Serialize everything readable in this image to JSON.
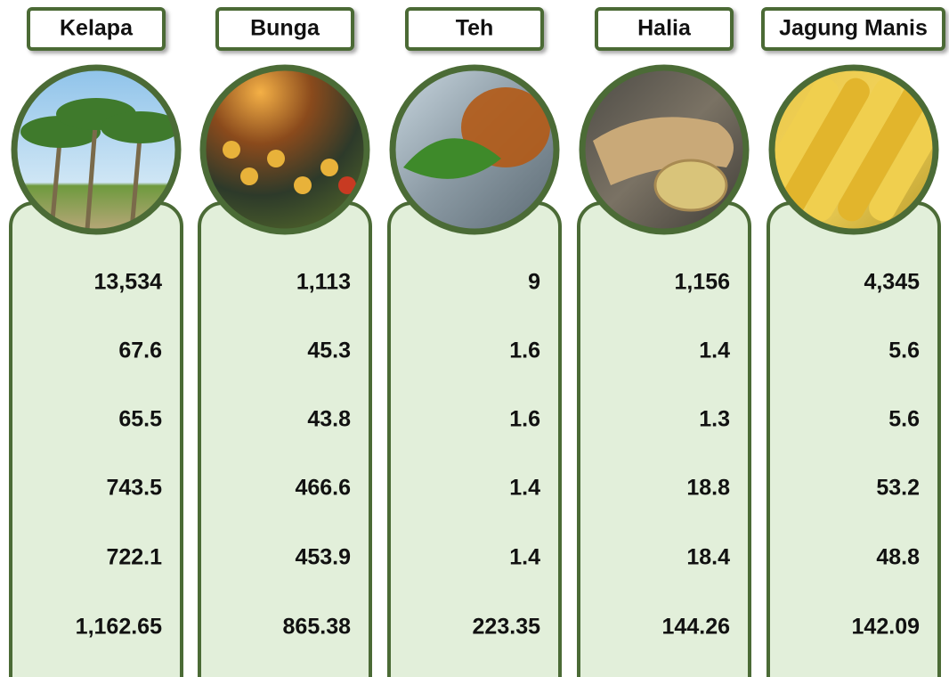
{
  "columns": [
    {
      "name": "Kelapa",
      "values": [
        "13,534",
        "67.6",
        "65.5",
        "743.5",
        "722.1",
        "1,162.65"
      ]
    },
    {
      "name": "Bunga",
      "values": [
        "1,113",
        "45.3",
        "43.8",
        "466.6",
        "453.9",
        "865.38"
      ]
    },
    {
      "name": "Teh",
      "values": [
        "9",
        "1.6",
        "1.6",
        "1.4",
        "1.4",
        "223.35"
      ]
    },
    {
      "name": "Halia",
      "values": [
        "1,156",
        "1.4",
        "1.3",
        "18.8",
        "18.4",
        "144.26"
      ]
    },
    {
      "name": "Jagung Manis",
      "values": [
        "4,345",
        "5.6",
        "5.6",
        "53.2",
        "48.8",
        "142.09"
      ]
    }
  ]
}
